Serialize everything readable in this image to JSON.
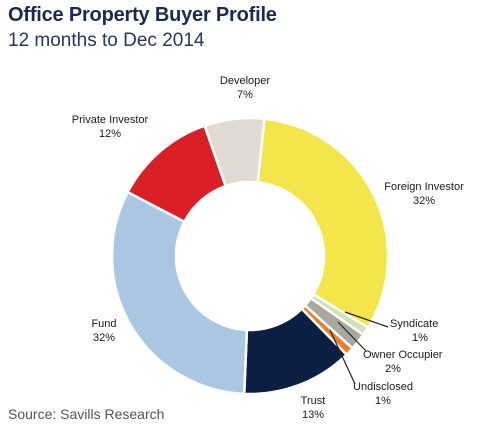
{
  "title": "Office Property Buyer Profile",
  "subtitle": "12 months to Dec 2014",
  "source": "Source: Savills Research",
  "chart_data": {
    "type": "pie",
    "subtype": "donut",
    "slices": [
      {
        "name": "Foreign Investor",
        "value": 32,
        "label": "32%",
        "color": "#f4e64a"
      },
      {
        "name": "Syndicate",
        "value": 1,
        "label": "1%",
        "color": "#cfe4b6"
      },
      {
        "name": "Owner Occupier",
        "value": 2,
        "label": "2%",
        "color": "#a8a8a0"
      },
      {
        "name": "Undisclosed",
        "value": 1,
        "label": "1%",
        "color": "#ee7d20"
      },
      {
        "name": "Trust",
        "value": 13,
        "label": "13%",
        "color": "#0c1e42"
      },
      {
        "name": "Fund",
        "value": 32,
        "label": "32%",
        "color": "#abc6e2"
      },
      {
        "name": "Private Investor",
        "value": 12,
        "label": "12%",
        "color": "#da1f26"
      },
      {
        "name": "Developer",
        "value": 7,
        "label": "7%",
        "color": "#e2dbd3"
      }
    ]
  }
}
